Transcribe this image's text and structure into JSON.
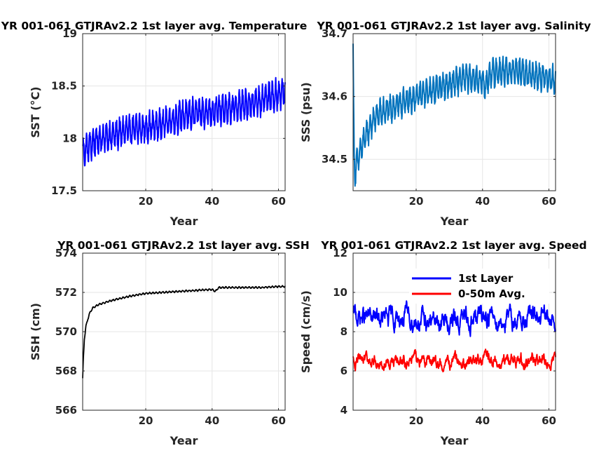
{
  "colors": {
    "blue": "#0000ff",
    "steel_blue": "#0072bd",
    "black": "#000000",
    "red": "#ff0000",
    "grid": "#e6e6e6",
    "axis": "#262626"
  },
  "chart_data": [
    {
      "type": "line",
      "title": "YR 001-061 GTJRAv2.2 1st layer avg. Temperature",
      "xlabel": "Year",
      "ylabel": "SST (°C)",
      "xlim": [
        1,
        62
      ],
      "ylim": [
        17.5,
        19
      ],
      "x_ticks": [
        "20",
        "40",
        "60"
      ],
      "y_ticks": [
        "17.5",
        "18",
        "18.5",
        "19"
      ],
      "grid": true,
      "series": [
        {
          "color": "#0000ff",
          "trend_x": [
            1,
            2,
            5,
            10,
            15,
            20,
            25,
            30,
            35,
            40,
            45,
            50,
            55,
            60,
            62
          ],
          "trend_y": [
            17.85,
            17.9,
            17.98,
            18.03,
            18.08,
            18.1,
            18.14,
            18.2,
            18.24,
            18.26,
            18.28,
            18.32,
            18.36,
            18.42,
            18.45
          ],
          "amplitude": 0.17
        }
      ]
    },
    {
      "type": "line",
      "title": "YR 001-061 GTJRAv2.2 1st layer avg. Salinity",
      "xlabel": "Year",
      "ylabel": "SSS (psu)",
      "xlim": [
        1,
        62
      ],
      "ylim": [
        34.45,
        34.7
      ],
      "x_ticks": [
        "20",
        "40",
        "60"
      ],
      "y_ticks": [
        "34.5",
        "34.6",
        "34.7"
      ],
      "grid": true,
      "series": [
        {
          "color": "#0072bd",
          "trend_x": [
            1,
            1.3,
            1.6,
            2,
            3,
            5,
            8,
            12,
            16,
            20,
            25,
            30,
            35,
            40,
            41,
            42,
            45,
            50,
            55,
            60,
            62
          ],
          "trend_y": [
            34.67,
            34.5,
            34.48,
            34.49,
            34.51,
            34.54,
            34.57,
            34.58,
            34.59,
            34.6,
            34.61,
            34.62,
            34.63,
            34.625,
            34.615,
            34.635,
            34.64,
            34.64,
            34.635,
            34.63,
            34.625
          ],
          "amplitude": 0.026
        }
      ]
    },
    {
      "type": "line",
      "title": "YR 001-061 GTJRAv2.2 1st layer avg. SSH",
      "xlabel": "Year",
      "ylabel": "SSH (cm)",
      "xlim": [
        1,
        62
      ],
      "ylim": [
        566,
        574
      ],
      "x_ticks": [
        "20",
        "40",
        "60"
      ],
      "y_ticks": [
        "566",
        "568",
        "570",
        "572",
        "574"
      ],
      "grid": true,
      "series": [
        {
          "color": "#000000",
          "trend_x": [
            1,
            1.2,
            1.5,
            2,
            3,
            4,
            6,
            8,
            10,
            15,
            20,
            25,
            30,
            35,
            40,
            41,
            42,
            45,
            50,
            55,
            60,
            62
          ],
          "trend_y": [
            567.6,
            568.6,
            569.6,
            570.3,
            570.9,
            571.2,
            571.4,
            571.5,
            571.6,
            571.8,
            571.95,
            572.0,
            572.05,
            572.1,
            572.15,
            572.05,
            572.25,
            572.25,
            572.25,
            572.25,
            572.3,
            572.3
          ],
          "amplitude": 0.05
        }
      ]
    },
    {
      "type": "line",
      "title": "YR 001-061 GTJRAv2.2 1st layer avg. Speed",
      "xlabel": "Year",
      "ylabel": "Speed (cm/s)",
      "xlim": [
        1,
        62
      ],
      "ylim": [
        4,
        12
      ],
      "x_ticks": [
        "20",
        "40",
        "60"
      ],
      "y_ticks": [
        "4",
        "6",
        "8",
        "10",
        "12"
      ],
      "grid": true,
      "legend": "top-right",
      "series": [
        {
          "name": "1st Layer",
          "color": "#0000ff",
          "trend_x": [
            1,
            5,
            10,
            15,
            20,
            25,
            30,
            35,
            40,
            42,
            45,
            50,
            55,
            60,
            62
          ],
          "trend_y": [
            8.8,
            8.7,
            8.6,
            8.7,
            8.6,
            8.5,
            8.5,
            8.6,
            8.8,
            8.9,
            8.6,
            8.6,
            8.7,
            8.6,
            8.5
          ],
          "amplitude": 0.7
        },
        {
          "name": "0-50m Avg.",
          "color": "#ff0000",
          "trend_x": [
            1,
            5,
            10,
            15,
            20,
            25,
            30,
            35,
            40,
            42,
            45,
            50,
            55,
            60,
            62
          ],
          "trend_y": [
            6.6,
            6.5,
            6.4,
            6.5,
            6.5,
            6.4,
            6.4,
            6.4,
            6.6,
            6.7,
            6.4,
            6.5,
            6.6,
            6.5,
            6.4
          ],
          "amplitude": 0.45
        }
      ]
    }
  ]
}
